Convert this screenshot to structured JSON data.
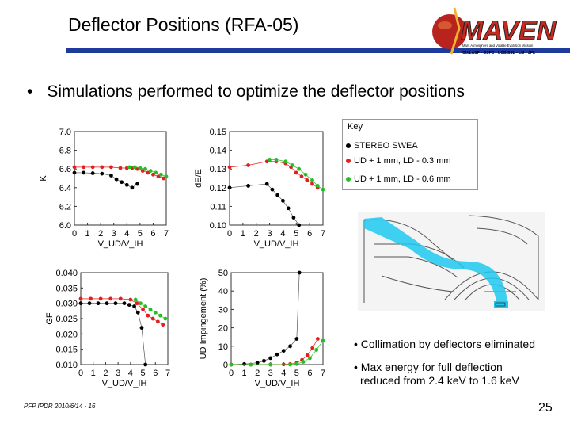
{
  "slide": {
    "title": "Deflector Positions (RFA-05)",
    "bullet": "Simulations performed to optimize the deflector positions",
    "footer": "PFP IPDR 2010/6/14 - 16",
    "page_number": "25",
    "logo_text": "MAVEN",
    "logo_tagline": "Mars Atmosphere and Volatile Evolution Mission",
    "logo_partners": "CU/LASP • GSFC • UCB/SSL • LM • JPL",
    "notes": [
      "• Collimation by deflectors eliminated",
      "• Max energy for full deflection",
      "reduced from 2.4 keV to 1.6 keV"
    ],
    "key": {
      "title": "Key",
      "items": [
        {
          "label": "STEREO SWEA",
          "color": "#000000"
        },
        {
          "label": "UD + 1 mm, LD - 0.3 mm",
          "color": "#e02020"
        },
        {
          "label": "UD + 1 mm, LD - 0.6 mm",
          "color": "#22c022"
        }
      ]
    },
    "colors": {
      "accent": "#1e3a9a",
      "series_black": "#000000",
      "series_red": "#e02020",
      "series_green": "#22c022",
      "beam": "#1ec8ee"
    }
  },
  "chart_data": [
    {
      "type": "scatter",
      "id": "K",
      "ylabel": "K",
      "xlabel": "V_UD/V_IH",
      "xlim": [
        0,
        7
      ],
      "ylim": [
        6.0,
        7.0
      ],
      "yticks": [
        "7.0",
        "6.8",
        "6.6",
        "6.4",
        "6.2",
        "6.0"
      ],
      "xticks": [
        "0",
        "1",
        "2",
        "3",
        "4",
        "5",
        "6",
        "7"
      ],
      "series": [
        {
          "name": "STEREO SWEA",
          "x": [
            0,
            0.7,
            1.4,
            2.1,
            2.8,
            3.2,
            3.6,
            4.0,
            4.4,
            4.8
          ],
          "y": [
            6.56,
            6.56,
            6.555,
            6.55,
            6.53,
            6.49,
            6.46,
            6.43,
            6.4,
            6.44
          ]
        },
        {
          "name": "UD + 1 mm, LD - 0.3 mm",
          "x": [
            0,
            0.7,
            1.4,
            2.1,
            2.8,
            3.5,
            4.0,
            4.4,
            4.8,
            5.2,
            5.6,
            6.0,
            6.4,
            6.8
          ],
          "y": [
            6.62,
            6.62,
            6.62,
            6.62,
            6.62,
            6.61,
            6.61,
            6.61,
            6.6,
            6.58,
            6.56,
            6.54,
            6.52,
            6.5
          ]
        },
        {
          "name": "UD + 1 mm, LD - 0.6 mm",
          "x": [
            4.2,
            4.6,
            5.0,
            5.4,
            5.8,
            6.2,
            6.6,
            7.0
          ],
          "y": [
            6.62,
            6.62,
            6.61,
            6.6,
            6.58,
            6.56,
            6.54,
            6.52
          ]
        }
      ]
    },
    {
      "type": "scatter",
      "id": "dEE",
      "ylabel": "dE/E",
      "xlabel": "V_UD/V_IH",
      "xlim": [
        0,
        7
      ],
      "ylim": [
        0.1,
        0.15
      ],
      "yticks": [
        "0.15",
        "0.14",
        "0.13",
        "0.12",
        "0.11",
        "0.10"
      ],
      "xticks": [
        "0",
        "1",
        "2",
        "3",
        "4",
        "5",
        "6",
        "7"
      ],
      "series": [
        {
          "name": "STEREO SWEA",
          "x": [
            0,
            1.4,
            2.8,
            3.2,
            3.6,
            4.0,
            4.4,
            4.8,
            5.2
          ],
          "y": [
            0.12,
            0.121,
            0.122,
            0.119,
            0.116,
            0.113,
            0.109,
            0.104,
            0.1
          ]
        },
        {
          "name": "UD + 1 mm, LD - 0.3 mm",
          "x": [
            0,
            1.4,
            2.8,
            3.5,
            4.2,
            4.6,
            5.0,
            5.4,
            5.8,
            6.2,
            6.6
          ],
          "y": [
            0.131,
            0.132,
            0.134,
            0.134,
            0.133,
            0.131,
            0.128,
            0.126,
            0.124,
            0.122,
            0.12
          ]
        },
        {
          "name": "UD + 1 mm, LD - 0.6 mm",
          "x": [
            3.0,
            3.5,
            4.2,
            4.7,
            5.2,
            5.7,
            6.2,
            6.6,
            7.0
          ],
          "y": [
            0.135,
            0.135,
            0.134,
            0.132,
            0.13,
            0.127,
            0.124,
            0.121,
            0.119
          ]
        }
      ]
    },
    {
      "type": "scatter",
      "id": "GF",
      "ylabel": "GF",
      "xlabel": "V_UD/V_IH",
      "xlim": [
        0,
        7
      ],
      "ylim": [
        0.01,
        0.04
      ],
      "yticks": [
        "0.040",
        "0.035",
        "0.030",
        "0.025",
        "0.020",
        "0.015",
        "0.010"
      ],
      "xticks": [
        "0",
        "1",
        "2",
        "3",
        "4",
        "5",
        "6",
        "7"
      ],
      "series": [
        {
          "name": "STEREO SWEA",
          "x": [
            0,
            0.7,
            1.4,
            2.1,
            2.8,
            3.5,
            3.9,
            4.3,
            4.6,
            4.9,
            5.2
          ],
          "y": [
            0.03,
            0.03,
            0.03,
            0.03,
            0.03,
            0.03,
            0.0295,
            0.029,
            0.027,
            0.022,
            0.01
          ]
        },
        {
          "name": "UD + 1 mm, LD - 0.3 mm",
          "x": [
            0,
            0.8,
            1.6,
            2.4,
            3.2,
            4.0,
            4.5,
            5.0,
            5.4,
            5.8,
            6.2,
            6.6
          ],
          "y": [
            0.0315,
            0.0315,
            0.0315,
            0.0315,
            0.0315,
            0.0312,
            0.03,
            0.028,
            0.026,
            0.025,
            0.024,
            0.023
          ]
        },
        {
          "name": "UD + 1 mm, LD - 0.6 mm",
          "x": [
            4.4,
            4.8,
            5.2,
            5.6,
            6.0,
            6.4,
            6.8
          ],
          "y": [
            0.0312,
            0.03,
            0.029,
            0.028,
            0.027,
            0.026,
            0.025
          ]
        }
      ]
    },
    {
      "type": "scatter",
      "id": "UD",
      "ylabel": "UD Impingement (%)",
      "xlabel": "V_UD/V_IH",
      "xlim": [
        0,
        7
      ],
      "ylim": [
        0,
        50
      ],
      "yticks": [
        "50",
        "40",
        "30",
        "20",
        "10",
        "0"
      ],
      "xticks": [
        "0",
        "1",
        "2",
        "3",
        "4",
        "5",
        "6",
        "7"
      ],
      "series": [
        {
          "name": "STEREO SWEA",
          "x": [
            0,
            1.0,
            2.0,
            2.5,
            3.0,
            3.5,
            4.0,
            4.5,
            5.0,
            5.2
          ],
          "y": [
            0,
            0.3,
            1.0,
            2.0,
            3.5,
            5.5,
            7.5,
            10.0,
            14.0,
            50.0
          ]
        },
        {
          "name": "UD + 1 mm, LD - 0.3 mm",
          "x": [
            0,
            1.5,
            3.0,
            4.0,
            4.5,
            5.0,
            5.4,
            5.8,
            6.2,
            6.6
          ],
          "y": [
            0,
            0,
            0,
            0.1,
            0.3,
            1.0,
            2.5,
            5.0,
            9.0,
            14.0
          ]
        },
        {
          "name": "UD + 1 mm, LD - 0.6 mm",
          "x": [
            0,
            1.5,
            3.0,
            4.5,
            5.0,
            5.5,
            6.0,
            6.5,
            7.0
          ],
          "y": [
            0,
            0,
            0,
            0,
            0.3,
            1.5,
            3.5,
            8.0,
            13.0
          ]
        }
      ]
    }
  ]
}
